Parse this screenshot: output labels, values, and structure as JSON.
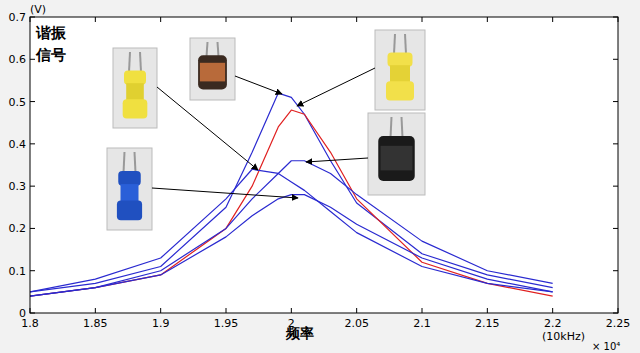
{
  "chart_data": {
    "type": "line",
    "ylabel": "(V)",
    "xlabel": "频率",
    "annotations": [
      "谐振",
      "信号",
      "(10kHz)",
      "× 10⁴"
    ],
    "x": [
      1.8,
      1.85,
      1.9,
      1.95,
      1.97,
      1.99,
      2.0,
      2.01,
      2.03,
      2.05,
      2.1,
      2.15,
      2.2
    ],
    "xlim": [
      1.8,
      2.25
    ],
    "xticks": [
      1.8,
      1.85,
      1.9,
      1.95,
      2,
      2.05,
      2.1,
      2.15,
      2.2,
      2.25
    ],
    "ylim": [
      0,
      0.7
    ],
    "yticks": [
      0,
      0.1,
      0.2,
      0.3,
      0.4,
      0.5,
      0.6,
      0.7
    ],
    "grid": false,
    "series": [
      {
        "color": "#2a2ad0",
        "values": [
          0.05,
          0.07,
          0.11,
          0.25,
          0.38,
          0.52,
          0.51,
          0.47,
          0.36,
          0.26,
          0.14,
          0.09,
          0.06
        ]
      },
      {
        "color": "#e02020",
        "values": [
          0.04,
          0.06,
          0.09,
          0.2,
          0.3,
          0.44,
          0.48,
          0.47,
          0.38,
          0.27,
          0.12,
          0.07,
          0.04
        ]
      },
      {
        "color": "#2a2ad0",
        "values": [
          0.04,
          0.06,
          0.1,
          0.2,
          0.27,
          0.33,
          0.36,
          0.36,
          0.33,
          0.28,
          0.17,
          0.1,
          0.07
        ]
      },
      {
        "color": "#2a2ad0",
        "values": [
          0.05,
          0.08,
          0.13,
          0.27,
          0.34,
          0.33,
          0.31,
          0.29,
          0.24,
          0.19,
          0.11,
          0.07,
          0.05
        ]
      },
      {
        "color": "#2a2ad0",
        "values": [
          0.04,
          0.06,
          0.09,
          0.18,
          0.23,
          0.27,
          0.28,
          0.28,
          0.25,
          0.21,
          0.13,
          0.08,
          0.05
        ]
      }
    ]
  }
}
